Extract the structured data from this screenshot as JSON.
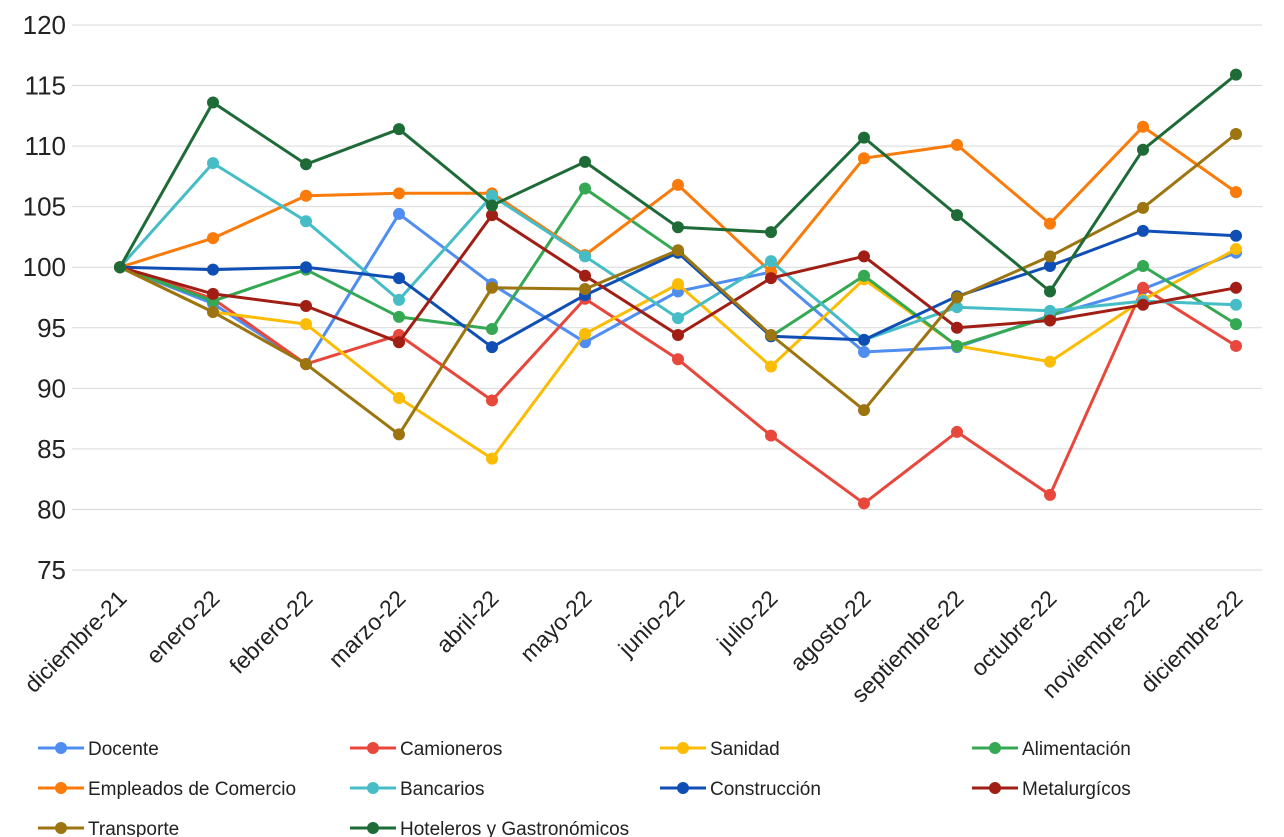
{
  "chart_data": {
    "type": "line",
    "title": "",
    "xlabel": "",
    "ylabel": "",
    "ylim": [
      75,
      120
    ],
    "yticks": [
      75,
      80,
      85,
      90,
      95,
      100,
      105,
      110,
      115,
      120
    ],
    "grid": true,
    "legend_position": "bottom",
    "categories": [
      "diciembre-21",
      "enero-22",
      "febrero-22",
      "marzo-22",
      "abril-22",
      "mayo-22",
      "junio-22",
      "julio-22",
      "agosto-22",
      "septiembre-22",
      "octubre-22",
      "noviembre-22",
      "diciembre-22"
    ],
    "series": [
      {
        "name": "Docente",
        "color": "#4f8ef0",
        "values": [
          100,
          97.0,
          92.0,
          104.4,
          98.6,
          93.8,
          98.0,
          99.6,
          93.0,
          93.4,
          96.0,
          98.2,
          101.2
        ]
      },
      {
        "name": "Camioneros",
        "color": "#e8473c",
        "values": [
          100,
          97.4,
          92.0,
          94.4,
          89.0,
          97.4,
          92.4,
          86.1,
          80.5,
          86.4,
          81.2,
          98.3,
          93.5
        ]
      },
      {
        "name": "Sanidad",
        "color": "#fbbc04",
        "values": [
          100,
          96.3,
          95.3,
          89.2,
          84.2,
          94.5,
          98.6,
          91.8,
          99.0,
          93.5,
          92.2,
          97.3,
          101.5
        ]
      },
      {
        "name": "Alimentación",
        "color": "#34a853",
        "values": [
          100,
          97.2,
          99.8,
          95.9,
          94.9,
          106.5,
          101.2,
          94.3,
          99.3,
          93.5,
          95.9,
          100.1,
          95.3
        ]
      },
      {
        "name": "Empleados de Comercio",
        "color": "#fa7a0a",
        "values": [
          100,
          102.4,
          105.9,
          106.1,
          106.1,
          101.0,
          106.8,
          99.6,
          109.0,
          110.1,
          103.6,
          111.6,
          106.2
        ]
      },
      {
        "name": "Bancarios",
        "color": "#46bdc6",
        "values": [
          100,
          108.6,
          103.8,
          97.3,
          105.9,
          100.9,
          95.8,
          100.5,
          94.0,
          96.7,
          96.4,
          97.2,
          96.9
        ]
      },
      {
        "name": "Construcción",
        "color": "#0f4fb5",
        "values": [
          100,
          99.8,
          100.0,
          99.1,
          93.4,
          97.7,
          101.2,
          94.3,
          94.0,
          97.6,
          100.1,
          103.0,
          102.6
        ]
      },
      {
        "name": "Metalurgícos",
        "color": "#a01e14",
        "values": [
          100,
          97.8,
          96.8,
          93.8,
          104.3,
          99.3,
          94.4,
          99.1,
          100.9,
          95.0,
          95.6,
          96.9,
          98.3
        ]
      },
      {
        "name": "Transporte",
        "color": "#9c7410",
        "values": [
          100,
          96.3,
          92.0,
          86.2,
          98.3,
          98.2,
          101.4,
          94.4,
          88.2,
          97.5,
          100.9,
          104.9,
          111.0
        ]
      },
      {
        "name": "Hoteleros y Gastronómicos",
        "color": "#1f6b38",
        "values": [
          100,
          113.6,
          108.5,
          111.4,
          105.1,
          108.7,
          103.3,
          102.9,
          110.7,
          104.3,
          98.0,
          109.7,
          115.9
        ]
      }
    ]
  }
}
